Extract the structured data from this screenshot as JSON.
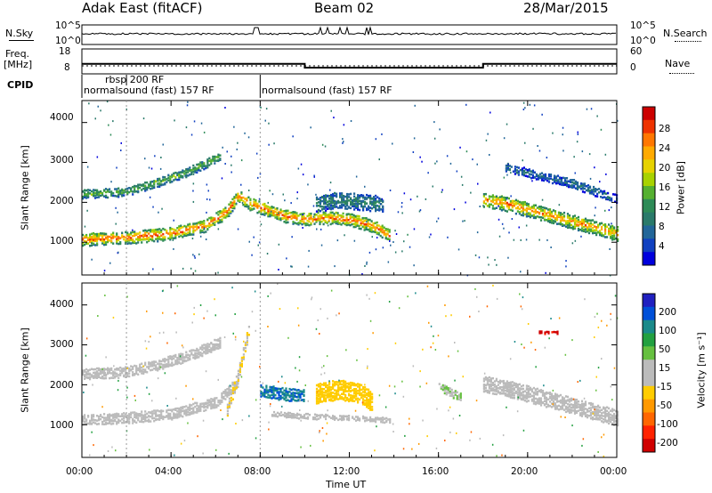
{
  "header": {
    "radar": "Adak East (fitACF)",
    "beam": "Beam 02",
    "date": "28/Mar/2015"
  },
  "side_labels": {
    "nsky": "N.Sky",
    "freq": "Freq.",
    "mhz": "[MHz]",
    "cpid": "CPID",
    "nsearch": "N.Search",
    "nave": "Nave"
  },
  "small_axes": {
    "nsky_ticks": [
      "10^5",
      "10^0"
    ],
    "nsearch_ticks": [
      "10^5",
      "10^0"
    ],
    "freq_ticks": [
      "18",
      "8"
    ],
    "nave_ticks": [
      "60",
      "0"
    ]
  },
  "cpid_labels": [
    "rbsp 200 RF",
    "normalsound (fast) 157 RF",
    "normalsound (fast) 157 RF"
  ],
  "range_axis": {
    "label": "Slant Range [km]",
    "ticks": [
      "4000",
      "3000",
      "2000",
      "1000"
    ]
  },
  "time_axis": {
    "label": "Time UT",
    "ticks": [
      "00:00",
      "04:00",
      "08:00",
      "12:00",
      "16:00",
      "20:00",
      "00:00"
    ]
  },
  "colorbars": {
    "power": {
      "label": "Power [dB]",
      "ticks": [
        "28",
        "24",
        "20",
        "16",
        "12",
        "8",
        "4"
      ],
      "colors": [
        "#cc0000",
        "#ee3300",
        "#ff7700",
        "#ffaa00",
        "#e6d200",
        "#a8d200",
        "#55b030",
        "#2e8b57",
        "#2a7a6a",
        "#226699",
        "#1040c0",
        "#0000dd"
      ]
    },
    "velocity": {
      "label": "Velocity [m s⁻¹]",
      "ticks": [
        "200",
        "100",
        "50",
        "15",
        "-15",
        "-50",
        "-100",
        "-200"
      ],
      "colors": [
        "#2020c0",
        "#0050d8",
        "#1a8a8a",
        "#22a040",
        "#66c040",
        "#bbbbbb",
        "#bbbbbb",
        "#ffcc00",
        "#ff9900",
        "#ff6600",
        "#ff2200",
        "#d00000"
      ]
    }
  },
  "chart_data": {
    "type": "heatmap",
    "title": "Adak East (fitACF)",
    "xlabel": "Time UT",
    "ylabel": "Slant Range [km]",
    "xlim_hours": [
      0,
      24
    ],
    "ylim_km": [
      180,
      4550
    ],
    "cpid_changes_hours": [
      2.0,
      8.0
    ],
    "freq_steps": [
      {
        "start_h": 0,
        "end_h": 10,
        "freq_mhz": 12
      },
      {
        "start_h": 10,
        "end_h": 18,
        "freq_mhz": 10.5
      },
      {
        "start_h": 18,
        "end_h": 24,
        "freq_mhz": 12
      }
    ],
    "power_bands": [
      {
        "points": [
          [
            0,
            1100
          ],
          [
            2,
            1150
          ],
          [
            4,
            1250
          ],
          [
            5.5,
            1450
          ],
          [
            6.5,
            1800
          ],
          [
            7,
            2200
          ],
          [
            7.5,
            2000
          ],
          [
            8,
            1900
          ],
          [
            9,
            1700
          ],
          [
            10,
            1600
          ],
          [
            11,
            1650
          ],
          [
            12,
            1600
          ],
          [
            13,
            1450
          ],
          [
            13.8,
            1200
          ]
        ],
        "width_km": 300,
        "power_db": 22
      },
      {
        "points": [
          [
            0,
            2250
          ],
          [
            2,
            2300
          ],
          [
            3.5,
            2550
          ],
          [
            4.5,
            2750
          ],
          [
            5.5,
            3000
          ],
          [
            6.2,
            3200
          ]
        ],
        "width_km": 220,
        "power_db": 12
      },
      {
        "points": [
          [
            18,
            2100
          ],
          [
            19,
            2000
          ],
          [
            20,
            1850
          ],
          [
            21,
            1700
          ],
          [
            22,
            1550
          ],
          [
            23,
            1400
          ],
          [
            24,
            1250
          ]
        ],
        "width_km": 350,
        "power_db": 20
      },
      {
        "points": [
          [
            19,
            2900
          ],
          [
            20.5,
            2700
          ],
          [
            22,
            2500
          ],
          [
            23,
            2300
          ],
          [
            24,
            2100
          ]
        ],
        "width_km": 200,
        "power_db": 6
      },
      {
        "points": [
          [
            10.5,
            2000
          ],
          [
            11.5,
            2100
          ],
          [
            12.5,
            2050
          ],
          [
            13.5,
            2000
          ]
        ],
        "width_km": 400,
        "power_db": 8
      }
    ],
    "velocity_regions": [
      {
        "points": [
          [
            0,
            2300
          ],
          [
            2,
            2350
          ],
          [
            3.5,
            2550
          ],
          [
            5,
            2800
          ],
          [
            6.2,
            3100
          ]
        ],
        "width_km": 250,
        "velocity": 0
      },
      {
        "points": [
          [
            0,
            1150
          ],
          [
            2,
            1200
          ],
          [
            4,
            1300
          ],
          [
            6,
            1600
          ],
          [
            7,
            2100
          ]
        ],
        "width_km": 250,
        "velocity": 0
      },
      {
        "points": [
          [
            6.5,
            1400
          ],
          [
            7,
            2300
          ],
          [
            7.3,
            3000
          ],
          [
            7.5,
            3500
          ]
        ],
        "width_km": 300,
        "velocity": -40
      },
      {
        "points": [
          [
            8,
            1900
          ],
          [
            9,
            1800
          ],
          [
            10,
            1750
          ]
        ],
        "width_km": 300,
        "velocity": 160
      },
      {
        "points": [
          [
            10.5,
            1800
          ],
          [
            11.5,
            1900
          ],
          [
            12.5,
            1800
          ],
          [
            13,
            1600
          ]
        ],
        "width_km": 450,
        "velocity": -60
      },
      {
        "points": [
          [
            8.5,
            1300
          ],
          [
            10,
            1250
          ],
          [
            12,
            1200
          ],
          [
            13.8,
            1150
          ]
        ],
        "width_km": 120,
        "velocity": 0
      },
      {
        "points": [
          [
            18,
            2050
          ],
          [
            19,
            1950
          ],
          [
            20,
            1800
          ],
          [
            21,
            1650
          ],
          [
            22,
            1500
          ],
          [
            23,
            1350
          ],
          [
            24,
            1200
          ]
        ],
        "width_km": 380,
        "velocity": 0
      },
      {
        "points": [
          [
            16,
            2000
          ],
          [
            17,
            1700
          ]
        ],
        "width_km": 200,
        "velocity": 40
      },
      {
        "points": [
          [
            20.5,
            3350
          ],
          [
            21.3,
            3350
          ]
        ],
        "width_km": 80,
        "velocity": -200
      }
    ]
  }
}
